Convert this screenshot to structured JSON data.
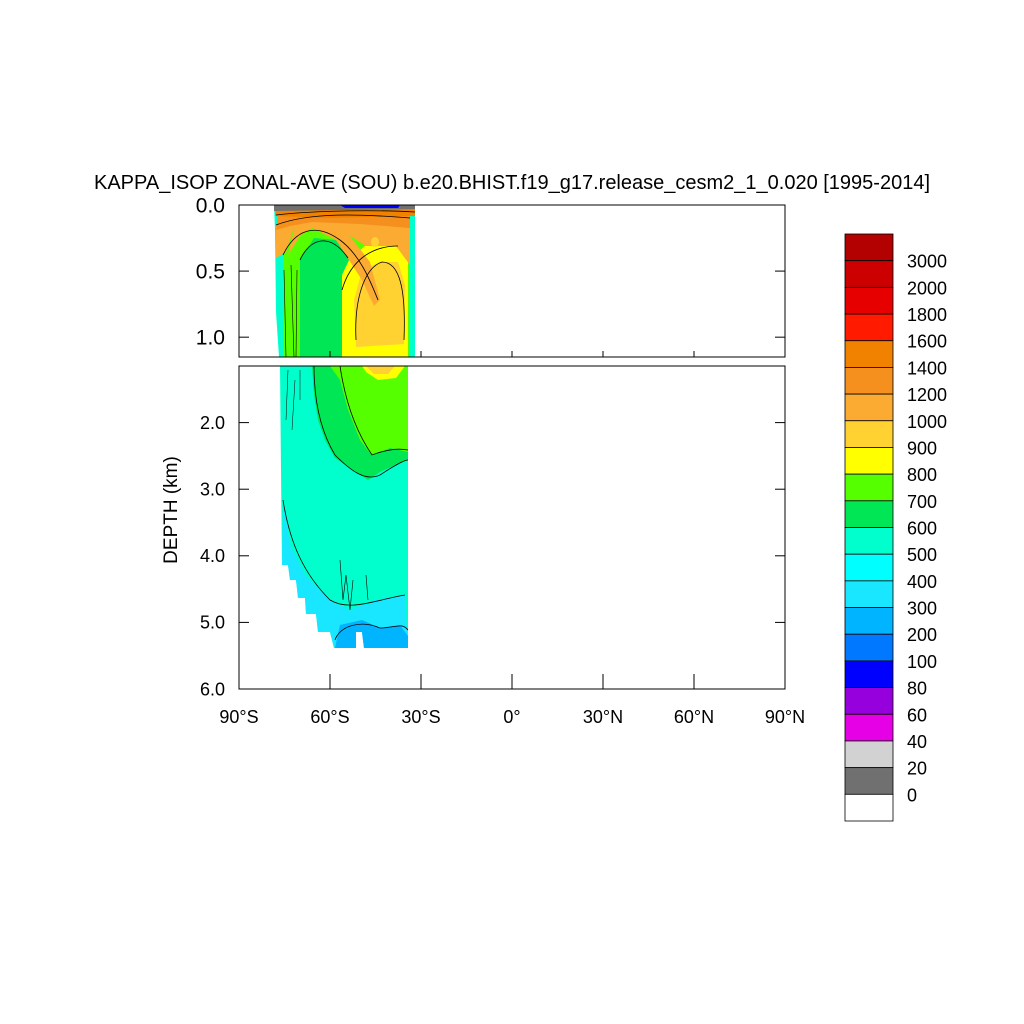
{
  "chart_data": {
    "type": "heatmap",
    "title": "KAPPA_ISOP ZONAL-AVE (SOU) b.e20.BHIST.f19_g17.release_cesm2_1_0.020 [1995-2014]",
    "ylabel": "DEPTH (km)",
    "xlabel": "",
    "x_ticks": [
      "90°S",
      "60°S",
      "30°S",
      "0°",
      "30°N",
      "60°N",
      "90°N"
    ],
    "x_tick_values": [
      -90,
      -60,
      -30,
      0,
      30,
      60,
      90
    ],
    "xlim": [
      -90,
      90
    ],
    "upper_panel": {
      "ylim": [
        0.0,
        1.15
      ],
      "y_ticks": [
        "0.0",
        "0.5",
        "1.0"
      ],
      "y_tick_values": [
        0.0,
        0.5,
        1.0
      ]
    },
    "lower_panel": {
      "ylim": [
        1.15,
        6.0
      ],
      "y_ticks": [
        "2.0",
        "3.0",
        "4.0",
        "5.0",
        "6.0"
      ],
      "y_tick_values": [
        2.0,
        3.0,
        4.0,
        5.0,
        6.0
      ]
    },
    "data_extent": {
      "lat_range": [
        -78,
        -34
      ],
      "max_depth_km": 5.4
    },
    "colorbar": {
      "labels": [
        "3000",
        "2000",
        "1800",
        "1600",
        "1400",
        "1200",
        "1000",
        "900",
        "800",
        "700",
        "600",
        "500",
        "400",
        "300",
        "200",
        "100",
        "80",
        "60",
        "40",
        "20",
        "0"
      ],
      "colors": [
        "#b30000",
        "#cc0000",
        "#e60000",
        "#ff1a00",
        "#f08200",
        "#f5901e",
        "#fbaa32",
        "#ffd232",
        "#ffff00",
        "#55ff00",
        "#00e655",
        "#00ffcc",
        "#00ffff",
        "#19e6ff",
        "#00b4ff",
        "#0078ff",
        "#0000ff",
        "#9600dc",
        "#e600e6",
        "#d2d2d2",
        "#707070",
        "#ffffff"
      ]
    }
  }
}
